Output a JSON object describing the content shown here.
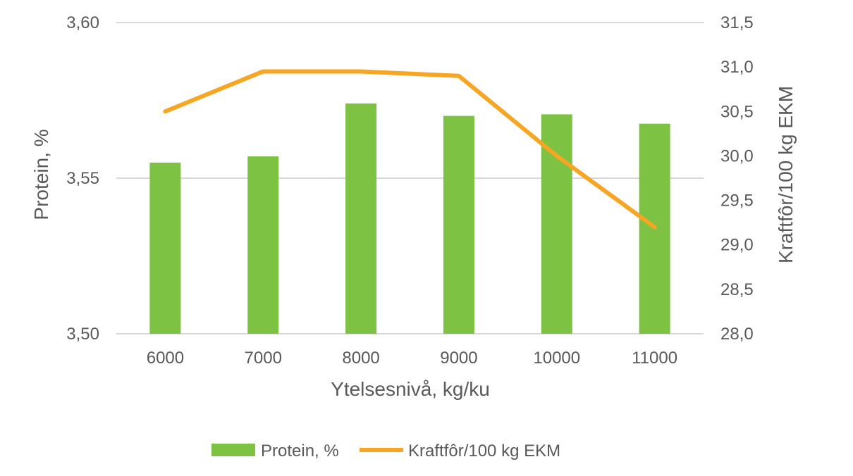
{
  "chart_data": {
    "type": "bar+line",
    "categories": [
      "6000",
      "7000",
      "8000",
      "9000",
      "10000",
      "11000"
    ],
    "series": [
      {
        "name": "Protein, %",
        "type": "bar",
        "axis": "left",
        "color": "#7dc243",
        "values": [
          3.555,
          3.557,
          3.574,
          3.57,
          3.5705,
          3.5675
        ]
      },
      {
        "name": "Kraftfôr/100 kg EKM",
        "type": "line",
        "axis": "right",
        "color": "#f6a623",
        "values": [
          30.5,
          30.95,
          30.95,
          30.9,
          30.0,
          29.2
        ]
      }
    ],
    "xlabel": "Ytelsesnivå, kg/ku",
    "ylabel_left": "Protein, %",
    "ylabel_right": "Kraftfôr/100 kg EKM",
    "ylim_left": [
      3.5,
      3.6
    ],
    "ylim_right": [
      28.0,
      31.5
    ],
    "yticks_left": [
      "3,50",
      "3,55",
      "3,60"
    ],
    "yticks_right": [
      "28,0",
      "28,5",
      "29,0",
      "29,5",
      "30,0",
      "30,5",
      "31,0",
      "31,5"
    ],
    "grid": true,
    "legend_position": "bottom"
  }
}
